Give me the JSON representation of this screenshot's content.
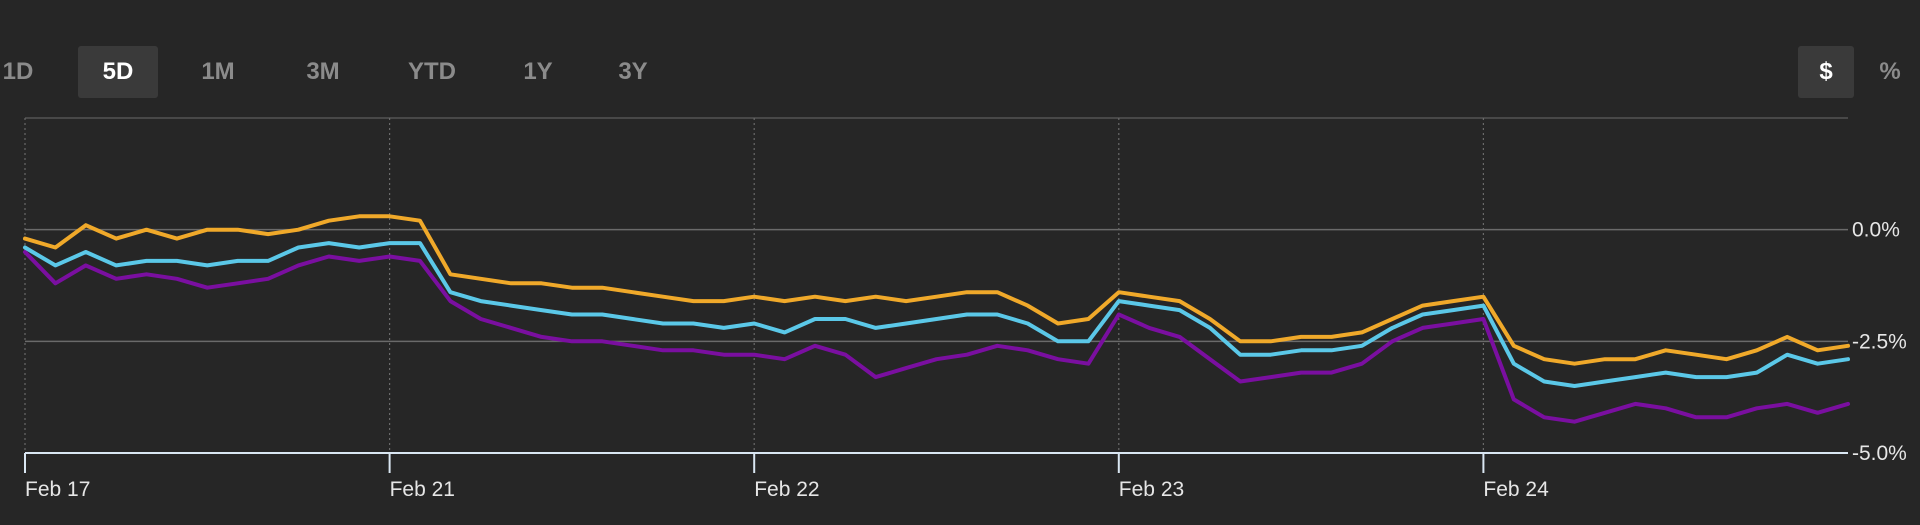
{
  "toolbar": {
    "ranges": [
      "1D",
      "5D",
      "1M",
      "3M",
      "YTD",
      "1Y",
      "3Y"
    ],
    "active_range": "5D",
    "units": [
      "$",
      "%"
    ],
    "active_unit": "$"
  },
  "colors": {
    "background": "#262626",
    "grid": "#6a6a6a",
    "axis": "#d9e6f2",
    "series": [
      "#f0a92a",
      "#5bc8e8",
      "#7a0fa0"
    ]
  },
  "chart_data": {
    "type": "line",
    "title": "",
    "xlabel": "",
    "ylabel": "",
    "x_ticks": [
      "Feb 17",
      "Feb 21",
      "Feb 22",
      "Feb 23",
      "Feb 24"
    ],
    "y_ticks": [
      "0.0%",
      "-2.5%",
      "-5.0%"
    ],
    "ylim": [
      -5.0,
      2.5
    ],
    "grid": true,
    "series": [
      {
        "color": "#f0a92a",
        "values": [
          -0.2,
          -0.4,
          0.1,
          -0.2,
          0.0,
          -0.2,
          0.0,
          0.0,
          -0.1,
          0.0,
          0.2,
          0.3,
          0.3,
          0.2,
          -1.0,
          -1.1,
          -1.2,
          -1.2,
          -1.3,
          -1.3,
          -1.4,
          -1.5,
          -1.6,
          -1.6,
          -1.5,
          -1.6,
          -1.5,
          -1.6,
          -1.5,
          -1.6,
          -1.5,
          -1.4,
          -1.4,
          -1.7,
          -2.1,
          -2.0,
          -1.4,
          -1.5,
          -1.6,
          -2.0,
          -2.5,
          -2.5,
          -2.4,
          -2.4,
          -2.3,
          -2.0,
          -1.7,
          -1.6,
          -1.5,
          -2.6,
          -2.9,
          -3.0,
          -2.9,
          -2.9,
          -2.7,
          -2.8,
          -2.9,
          -2.7,
          -2.4,
          -2.7,
          -2.6
        ]
      },
      {
        "color": "#5bc8e8",
        "values": [
          -0.4,
          -0.8,
          -0.5,
          -0.8,
          -0.7,
          -0.7,
          -0.8,
          -0.7,
          -0.7,
          -0.4,
          -0.3,
          -0.4,
          -0.3,
          -0.3,
          -1.4,
          -1.6,
          -1.7,
          -1.8,
          -1.9,
          -1.9,
          -2.0,
          -2.1,
          -2.1,
          -2.2,
          -2.1,
          -2.3,
          -2.0,
          -2.0,
          -2.2,
          -2.1,
          -2.0,
          -1.9,
          -1.9,
          -2.1,
          -2.5,
          -2.5,
          -1.6,
          -1.7,
          -1.8,
          -2.2,
          -2.8,
          -2.8,
          -2.7,
          -2.7,
          -2.6,
          -2.2,
          -1.9,
          -1.8,
          -1.7,
          -3.0,
          -3.4,
          -3.5,
          -3.4,
          -3.3,
          -3.2,
          -3.3,
          -3.3,
          -3.2,
          -2.8,
          -3.0,
          -2.9
        ]
      },
      {
        "color": "#7a0fa0",
        "values": [
          -0.5,
          -1.2,
          -0.8,
          -1.1,
          -1.0,
          -1.1,
          -1.3,
          -1.2,
          -1.1,
          -0.8,
          -0.6,
          -0.7,
          -0.6,
          -0.7,
          -1.6,
          -2.0,
          -2.2,
          -2.4,
          -2.5,
          -2.5,
          -2.6,
          -2.7,
          -2.7,
          -2.8,
          -2.8,
          -2.9,
          -2.6,
          -2.8,
          -3.3,
          -3.1,
          -2.9,
          -2.8,
          -2.6,
          -2.7,
          -2.9,
          -3.0,
          -1.9,
          -2.2,
          -2.4,
          -2.9,
          -3.4,
          -3.3,
          -3.2,
          -3.2,
          -3.0,
          -2.5,
          -2.2,
          -2.1,
          -2.0,
          -3.8,
          -4.2,
          -4.3,
          -4.1,
          -3.9,
          -4.0,
          -4.2,
          -4.2,
          -4.0,
          -3.9,
          -4.1,
          -3.9
        ]
      }
    ]
  }
}
